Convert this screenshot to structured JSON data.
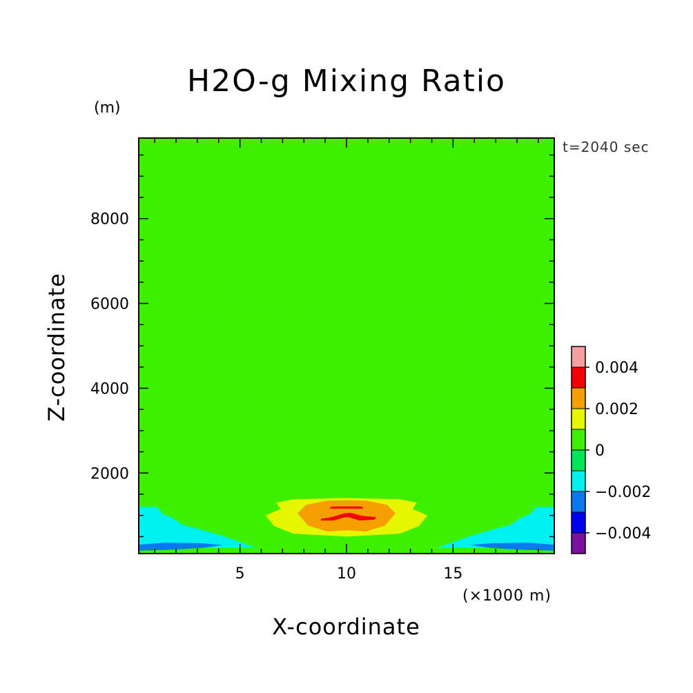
{
  "chart_data": {
    "type": "heatmap",
    "title": "H2O-g Mixing Ratio",
    "xlabel": "X-coordinate",
    "ylabel": "Z-coordinate",
    "x_unit_label": "(×1000 m)",
    "y_unit_label": "(m)",
    "time_label": "t=2040 sec",
    "xlim": [
      0.25,
      19.75
    ],
    "ylim": [
      100,
      9900
    ],
    "x_ticks": [
      5,
      10,
      15
    ],
    "y_ticks": [
      2000,
      4000,
      6000,
      8000
    ],
    "colorbar": {
      "levels": [
        -0.005,
        -0.004,
        -0.003,
        -0.002,
        -0.001,
        0,
        0.001,
        0.002,
        0.003,
        0.004,
        0.005
      ],
      "colors": [
        "#7d0fa0",
        "#0000ee",
        "#0a78f0",
        "#00f0f0",
        "#00e65a",
        "#3cf000",
        "#e6f500",
        "#f5a000",
        "#f50000",
        "#f5a0a0"
      ],
      "tick_values": [
        -0.004,
        -0.002,
        0,
        0.002,
        0.004
      ],
      "tick_labels": [
        "−0.004",
        "−0.002",
        "0",
        "0.002",
        "0.004"
      ]
    },
    "regions": [
      {
        "level": 0.0005,
        "points": [
          [
            0.25,
            9650
          ],
          [
            4.55,
            9650
          ],
          [
            4.65,
            6400
          ],
          [
            5.05,
            5980
          ],
          [
            8.5,
            5700
          ],
          [
            10,
            5660
          ],
          [
            11.5,
            5700
          ],
          [
            14.95,
            5980
          ],
          [
            15.35,
            6400
          ],
          [
            15.45,
            9650
          ],
          [
            19.75,
            9650
          ],
          [
            19.75,
            5800
          ],
          [
            16.7,
            5700
          ],
          [
            16.2,
            5380
          ],
          [
            15.9,
            4550
          ],
          [
            14.3,
            3550
          ],
          [
            12.5,
            3000
          ],
          [
            10,
            2950
          ],
          [
            7.5,
            3000
          ],
          [
            5.7,
            3550
          ],
          [
            4.1,
            4550
          ],
          [
            3.8,
            5380
          ],
          [
            3.3,
            5700
          ],
          [
            0.25,
            5800
          ]
        ]
      },
      {
        "level": 0.0005,
        "points": [
          [
            0.25,
            2940
          ],
          [
            2.5,
            2990
          ],
          [
            5.5,
            2840
          ],
          [
            6.2,
            2630
          ],
          [
            5.6,
            2380
          ],
          [
            6.2,
            1950
          ],
          [
            7.5,
            1810
          ],
          [
            10,
            1770
          ],
          [
            12.5,
            1810
          ],
          [
            13.8,
            1950
          ],
          [
            14.4,
            2380
          ],
          [
            13.8,
            2630
          ],
          [
            14.5,
            2840
          ],
          [
            17.5,
            2990
          ],
          [
            19.75,
            2940
          ],
          [
            19.75,
            1880
          ],
          [
            17.3,
            1880
          ],
          [
            15.6,
            1720
          ],
          [
            13.8,
            1700
          ],
          [
            10,
            1650
          ],
          [
            6.2,
            1700
          ],
          [
            4.4,
            1720
          ],
          [
            2.7,
            1880
          ],
          [
            0.25,
            1880
          ]
        ]
      },
      {
        "level": 0.0005,
        "points": [
          [
            4.1,
            1420
          ],
          [
            6.2,
            1350
          ],
          [
            7.5,
            1450
          ],
          [
            10,
            1500
          ],
          [
            12.5,
            1450
          ],
          [
            13.8,
            1350
          ],
          [
            15.9,
            1420
          ],
          [
            15.4,
            1290
          ],
          [
            15.9,
            1160
          ],
          [
            14.5,
            1080
          ],
          [
            15.2,
            880
          ],
          [
            14.2,
            640
          ],
          [
            12.5,
            480
          ],
          [
            10,
            430
          ],
          [
            7.5,
            480
          ],
          [
            5.8,
            640
          ],
          [
            4.8,
            880
          ],
          [
            5.5,
            1080
          ],
          [
            4.1,
            1160
          ],
          [
            4.6,
            1290
          ]
        ]
      },
      {
        "level": -0.0015,
        "points": [
          [
            0.25,
            1200
          ],
          [
            1.1,
            1200
          ],
          [
            1.4,
            1030
          ],
          [
            1.8,
            950
          ],
          [
            2.3,
            780
          ],
          [
            3.5,
            620
          ],
          [
            4.4,
            480
          ],
          [
            5.0,
            370
          ],
          [
            5.8,
            230
          ],
          [
            0.25,
            230
          ]
        ]
      },
      {
        "level": -0.0015,
        "points": [
          [
            19.75,
            1200
          ],
          [
            18.9,
            1200
          ],
          [
            18.6,
            1030
          ],
          [
            18.2,
            950
          ],
          [
            17.7,
            780
          ],
          [
            16.5,
            620
          ],
          [
            15.6,
            480
          ],
          [
            15.0,
            370
          ],
          [
            14.2,
            230
          ],
          [
            19.75,
            230
          ]
        ]
      },
      {
        "level": -0.0025,
        "points": [
          [
            0.25,
            310
          ],
          [
            1.5,
            355
          ],
          [
            3.2,
            345
          ],
          [
            4.2,
            300
          ],
          [
            3.2,
            230
          ],
          [
            1.5,
            185
          ],
          [
            0.25,
            170
          ]
        ]
      },
      {
        "level": -0.0025,
        "points": [
          [
            19.75,
            310
          ],
          [
            18.5,
            355
          ],
          [
            16.8,
            345
          ],
          [
            15.8,
            300
          ],
          [
            16.8,
            230
          ],
          [
            18.5,
            185
          ],
          [
            19.75,
            170
          ]
        ]
      },
      {
        "level": -0.0015,
        "points": [
          [
            0.25,
            1130
          ],
          [
            0.6,
            1080
          ],
          [
            0.25,
            1010
          ]
        ]
      },
      {
        "level": -0.0015,
        "points": [
          [
            19.75,
            1130
          ],
          [
            19.4,
            1080
          ],
          [
            19.75,
            1010
          ]
        ]
      },
      {
        "level": 0.0015,
        "points": [
          [
            6.7,
            1300
          ],
          [
            7.5,
            1380
          ],
          [
            10,
            1410
          ],
          [
            12.5,
            1380
          ],
          [
            13.3,
            1300
          ],
          [
            13.1,
            1150
          ],
          [
            13.8,
            1000
          ],
          [
            13.4,
            750
          ],
          [
            12.5,
            570
          ],
          [
            10,
            500
          ],
          [
            7.5,
            570
          ],
          [
            6.6,
            750
          ],
          [
            6.2,
            1000
          ],
          [
            6.9,
            1150
          ]
        ]
      },
      {
        "level": 0.0025,
        "points": [
          [
            7.7,
            1050
          ],
          [
            8.1,
            1250
          ],
          [
            9.1,
            1350
          ],
          [
            10,
            1360
          ],
          [
            10.9,
            1350
          ],
          [
            11.9,
            1250
          ],
          [
            12.3,
            1050
          ],
          [
            11.8,
            760
          ],
          [
            10.9,
            620
          ],
          [
            10,
            650
          ],
          [
            9.1,
            620
          ],
          [
            8.2,
            760
          ]
        ]
      },
      {
        "level": 0.0035,
        "points": [
          [
            9.2,
            1160
          ],
          [
            10.8,
            1160
          ],
          [
            10.7,
            1210
          ],
          [
            9.3,
            1210
          ]
        ]
      },
      {
        "level": 0.0035,
        "points": [
          [
            8.8,
            920
          ],
          [
            9.3,
            960
          ],
          [
            9.9,
            1050
          ],
          [
            10.2,
            1060
          ],
          [
            10.7,
            990
          ],
          [
            11.4,
            960
          ],
          [
            11.3,
            900
          ],
          [
            10.6,
            880
          ],
          [
            10.1,
            960
          ],
          [
            9.9,
            960
          ],
          [
            9.4,
            880
          ],
          [
            8.8,
            880
          ]
        ]
      }
    ]
  }
}
